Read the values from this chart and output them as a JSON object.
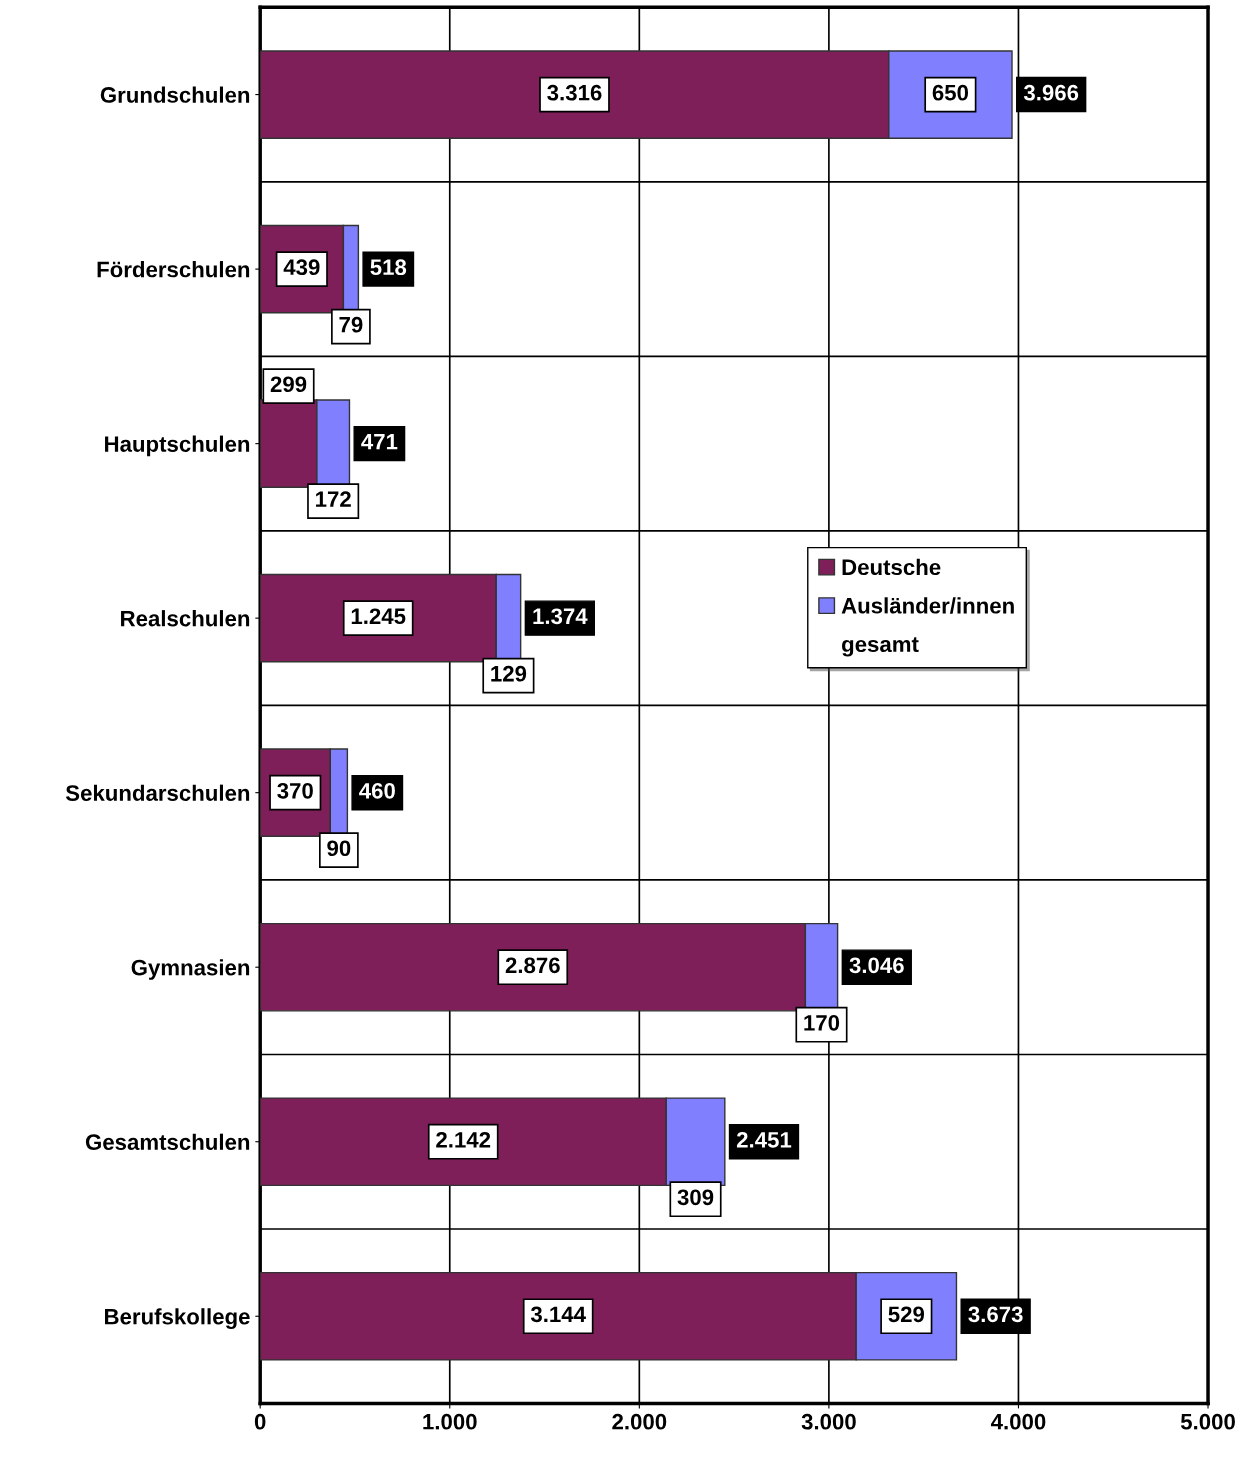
{
  "chart_data": {
    "type": "bar",
    "orientation": "horizontal",
    "stacked": true,
    "categories": [
      "Grundschulen",
      "Förderschulen",
      "Hauptschulen",
      "Realschulen",
      "Sekundarschulen",
      "Gymnasien",
      "Gesamtschulen",
      "Berufskollege"
    ],
    "series": [
      {
        "name": "Deutsche",
        "color": "#7f1f5a",
        "values": [
          3316,
          439,
          299,
          1245,
          370,
          2876,
          2142,
          3144
        ],
        "value_labels": [
          "3.316",
          "439",
          "299",
          "1.245",
          "370",
          "2.876",
          "2.142",
          "3.144"
        ]
      },
      {
        "name": "Ausländer/innen",
        "color": "#8080ff",
        "values": [
          650,
          79,
          172,
          129,
          90,
          170,
          309,
          529
        ],
        "value_labels": [
          "650",
          "79",
          "172",
          "129",
          "90",
          "170",
          "309",
          "529"
        ]
      }
    ],
    "totals": [
      "3.966",
      "518",
      "471",
      "1.374",
      "460",
      "3.046",
      "2.451",
      "3.673"
    ],
    "annotations": [
      "gesamt"
    ],
    "xlim": [
      0,
      5000
    ],
    "xticks": [
      0,
      {
        "value": 1000,
        "label": "1.000"
      },
      {
        "value": 2000,
        "label": "2.000"
      },
      {
        "value": 3000,
        "label": "3.000"
      },
      {
        "value": 4000,
        "label": "4.000"
      },
      {
        "value": 5000,
        "label": "5.000"
      }
    ],
    "grid": true,
    "legend": "right"
  }
}
